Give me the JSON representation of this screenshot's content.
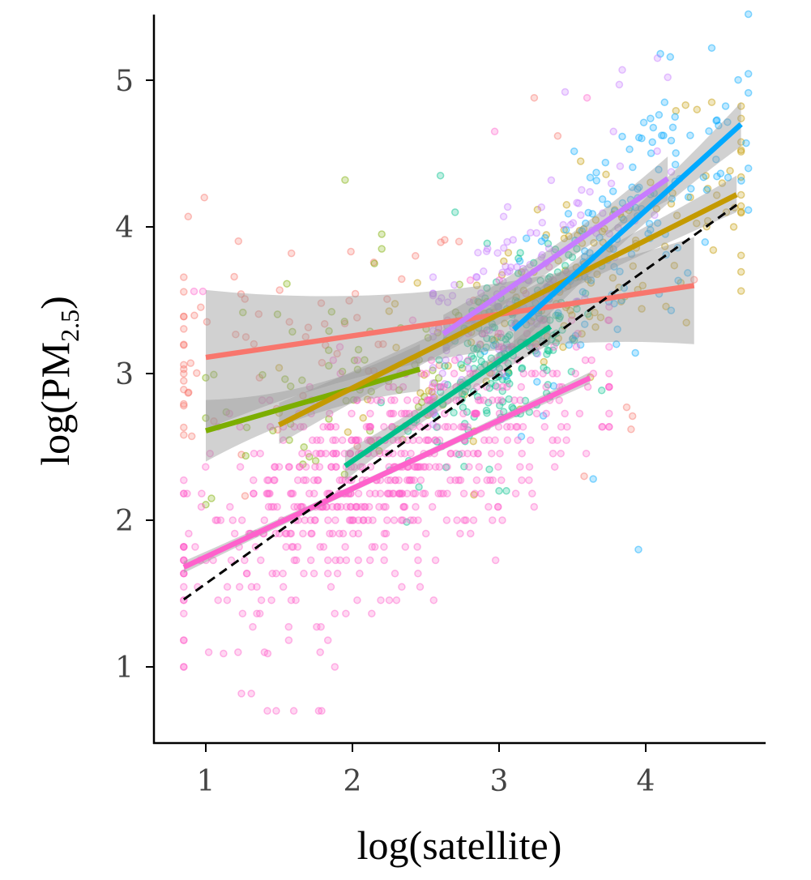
{
  "chart_data": {
    "type": "scatter",
    "title": "",
    "xlabel": "log(satellite)",
    "ylabel": "log(PM2.5)",
    "ylabel_main": "log(PM",
    "ylabel_sub": "2.5",
    "ylabel_close": ")",
    "xlim": [
      0.65,
      4.82
    ],
    "ylim": [
      0.52,
      5.45
    ],
    "x_ticks": [
      1,
      2,
      3,
      4
    ],
    "y_ticks": [
      1,
      2,
      3,
      4,
      5
    ],
    "x_tick_labels": [
      "1",
      "2",
      "3",
      "4"
    ],
    "y_tick_labels": [
      "1",
      "2",
      "3",
      "4",
      "5"
    ],
    "grid": false,
    "legend": "none",
    "identity_line": {
      "style": "dashed",
      "color": "#000000",
      "x": [
        0.85,
        4.62
      ],
      "y": [
        1.46,
        4.15
      ]
    },
    "series": [
      {
        "name": "red",
        "color": "#F8766D",
        "fit": {
          "x": [
            1.0,
            4.33
          ],
          "y": [
            3.11,
            3.6
          ]
        },
        "ci_lower": [
          2.62,
          3.2
        ],
        "ci_upper": [
          3.57,
          3.93
        ],
        "points": {
          "x_range": [
            0.85,
            4.35
          ],
          "center": [
            1.5,
            3.2
          ],
          "n": 70,
          "spread": [
            0.75,
            0.5
          ],
          "extra": [
            [
              0.88,
              4.07
            ],
            [
              0.99,
              4.2
            ],
            [
              3.24,
              4.88
            ],
            [
              3.4,
              4.62
            ],
            [
              3.58,
              2.3
            ],
            [
              3.87,
              2.77
            ],
            [
              3.9,
              2.62
            ],
            [
              3.91,
              2.71
            ],
            [
              4.33,
              3.64
            ]
          ]
        }
      },
      {
        "name": "olive",
        "color": "#7CAE00",
        "fit": {
          "x": [
            1.0,
            2.46
          ],
          "y": [
            2.61,
            3.03
          ]
        },
        "ci_lower": [
          2.4,
          2.88
        ],
        "ci_upper": [
          2.82,
          3.2
        ],
        "points": {
          "x_range": [
            1.0,
            2.75
          ],
          "center": [
            1.9,
            3.0
          ],
          "n": 65,
          "spread": [
            0.55,
            0.45
          ],
          "extra": [
            [
              1.95,
              4.32
            ],
            [
              2.2,
              3.85
            ],
            [
              2.2,
              3.95
            ],
            [
              2.15,
              3.75
            ]
          ]
        }
      },
      {
        "name": "gold",
        "color": "#C49A00",
        "fit": {
          "x": [
            1.5,
            4.62
          ],
          "y": [
            2.65,
            4.22
          ]
        },
        "ci_lower": [
          2.52,
          4.1
        ],
        "ci_upper": [
          2.8,
          4.35
        ],
        "points": {
          "x_range": [
            1.5,
            4.65
          ],
          "center": [
            3.6,
            3.7
          ],
          "n": 150,
          "spread": [
            0.75,
            0.45
          ],
          "extra": [
            [
              4.35,
              4.8
            ],
            [
              4.45,
              4.85
            ],
            [
              4.6,
              4.0
            ],
            [
              4.55,
              4.1
            ]
          ]
        }
      },
      {
        "name": "teal",
        "color": "#00C08B",
        "fit": {
          "x": [
            1.95,
            3.35
          ],
          "y": [
            2.37,
            3.32
          ]
        },
        "ci_lower": [
          2.27,
          3.2
        ],
        "ci_upper": [
          2.47,
          3.42
        ],
        "points": {
          "x_range": [
            1.9,
            3.7
          ],
          "center": [
            3.05,
            3.1
          ],
          "n": 200,
          "spread": [
            0.3,
            0.35
          ],
          "extra": [
            [
              2.6,
              4.35
            ],
            [
              2.7,
              4.1
            ],
            [
              3.0,
              2.2
            ],
            [
              3.05,
              2.2
            ]
          ]
        }
      },
      {
        "name": "blue",
        "color": "#00A9FF",
        "fit": {
          "x": [
            3.1,
            4.65
          ],
          "y": [
            3.3,
            4.7
          ]
        },
        "ci_lower": [
          3.15,
          4.55
        ],
        "ci_upper": [
          3.45,
          4.85
        ],
        "points": {
          "x_range": [
            2.9,
            4.7
          ],
          "center": [
            3.9,
            4.1
          ],
          "n": 130,
          "spread": [
            0.45,
            0.5
          ],
          "extra": [
            [
              3.95,
              1.8
            ],
            [
              4.1,
              5.18
            ],
            [
              4.45,
              5.22
            ],
            [
              4.2,
              4.75
            ],
            [
              3.8,
              3.2
            ]
          ]
        }
      },
      {
        "name": "violet",
        "color": "#C77CFF",
        "fit": {
          "x": [
            2.62,
            4.15
          ],
          "y": [
            3.27,
            4.33
          ]
        },
        "ci_lower": [
          3.14,
          4.18
        ],
        "ci_upper": [
          3.4,
          4.48
        ],
        "points": {
          "x_range": [
            2.55,
            4.3
          ],
          "center": [
            3.1,
            3.75
          ],
          "n": 130,
          "spread": [
            0.45,
            0.4
          ],
          "extra": [
            [
              3.45,
              4.92
            ],
            [
              3.82,
              4.97
            ],
            [
              3.84,
              5.07
            ],
            [
              4.15,
              5.02
            ],
            [
              4.08,
              5.15
            ],
            [
              3.78,
              4.65
            ]
          ]
        }
      },
      {
        "name": "magenta",
        "color": "#FF61CC",
        "fit": {
          "x": [
            0.85,
            3.62
          ],
          "y": [
            1.68,
            2.97
          ]
        },
        "ci_lower": [
          1.64,
          2.93
        ],
        "ci_upper": [
          1.72,
          3.01
        ],
        "points": {
          "x_range": [
            0.85,
            3.75
          ],
          "center": [
            2.2,
            2.2
          ],
          "n": 650,
          "spread": [
            0.7,
            0.5
          ],
          "extra": [
            [
              1.42,
              0.7
            ],
            [
              1.48,
              0.7
            ],
            [
              1.6,
              0.7
            ],
            [
              1.77,
              0.7
            ],
            [
              1.79,
              0.7
            ],
            [
              1.02,
              1.1
            ],
            [
              1.22,
              1.1
            ],
            [
              1.4,
              1.1
            ],
            [
              1.78,
              1.1
            ],
            [
              2.97,
              4.65
            ],
            [
              3.6,
              4.88
            ],
            [
              0.92,
              3.56
            ],
            [
              0.98,
              3.56
            ]
          ]
        }
      }
    ]
  }
}
